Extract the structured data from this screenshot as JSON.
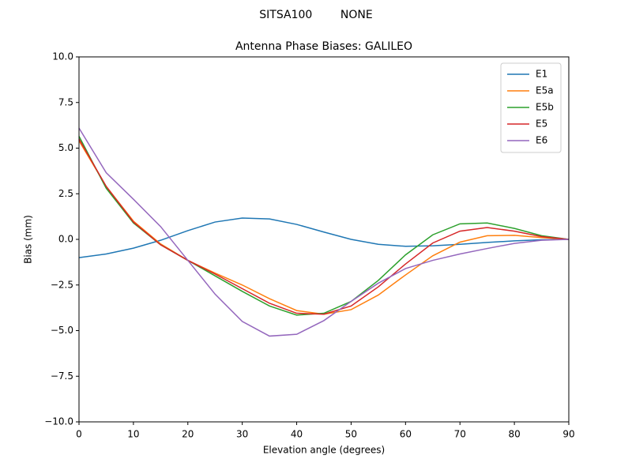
{
  "chart_data": {
    "type": "line",
    "suptitle": "SITSA100        NONE",
    "title": "Antenna Phase Biases: GALILEO",
    "xlabel": "Elevation angle (degrees)",
    "ylabel": "Bias (mm)",
    "x": [
      0,
      5,
      10,
      15,
      20,
      25,
      30,
      35,
      40,
      45,
      50,
      55,
      60,
      65,
      70,
      75,
      80,
      85,
      90
    ],
    "series": [
      {
        "name": "E1",
        "color": "#1f77b4",
        "values": [
          -1.0,
          -0.8,
          -0.48,
          -0.05,
          0.48,
          0.95,
          1.17,
          1.12,
          0.82,
          0.4,
          0,
          -0.27,
          -0.38,
          -0.35,
          -0.27,
          -0.17,
          -0.08,
          -0.02,
          0
        ]
      },
      {
        "name": "E5a",
        "color": "#ff7f0e",
        "values": [
          5.4,
          2.9,
          1.0,
          -0.25,
          -1.15,
          -1.85,
          -2.5,
          -3.25,
          -3.9,
          -4.1,
          -3.85,
          -3.05,
          -1.95,
          -0.9,
          -0.15,
          0.2,
          0.22,
          0.1,
          0
        ]
      },
      {
        "name": "E5b",
        "color": "#2ca02c",
        "values": [
          5.65,
          2.8,
          0.9,
          -0.3,
          -1.15,
          -2.0,
          -2.85,
          -3.65,
          -4.15,
          -4.05,
          -3.4,
          -2.25,
          -0.85,
          0.25,
          0.85,
          0.9,
          0.6,
          0.2,
          0
        ]
      },
      {
        "name": "E5",
        "color": "#d62728",
        "values": [
          5.5,
          2.9,
          0.95,
          -0.3,
          -1.15,
          -1.9,
          -2.7,
          -3.5,
          -4.05,
          -4.1,
          -3.65,
          -2.6,
          -1.35,
          -0.2,
          0.45,
          0.65,
          0.45,
          0.15,
          0
        ]
      },
      {
        "name": "E6",
        "color": "#9467bd",
        "values": [
          6.1,
          3.65,
          2.2,
          0.7,
          -1.15,
          -3.0,
          -4.5,
          -5.3,
          -5.2,
          -4.45,
          -3.4,
          -2.4,
          -1.6,
          -1.15,
          -0.8,
          -0.5,
          -0.22,
          -0.05,
          0
        ]
      }
    ],
    "xlim": [
      0,
      90
    ],
    "xticks": [
      0,
      10,
      20,
      30,
      40,
      50,
      60,
      70,
      80,
      90
    ],
    "ylim": [
      -10,
      10
    ],
    "yticks": [
      {
        "value": -10,
        "label": "−10.0"
      },
      {
        "value": -7.5,
        "label": "−7.5"
      },
      {
        "value": -5,
        "label": "−5.0"
      },
      {
        "value": -2.5,
        "label": "−2.5"
      },
      {
        "value": 0,
        "label": "0.0"
      },
      {
        "value": 2.5,
        "label": "2.5"
      },
      {
        "value": 5,
        "label": "5.0"
      },
      {
        "value": 7.5,
        "label": "7.5"
      },
      {
        "value": 10,
        "label": "10.0"
      }
    ],
    "legend": "upper right",
    "grid": false
  }
}
